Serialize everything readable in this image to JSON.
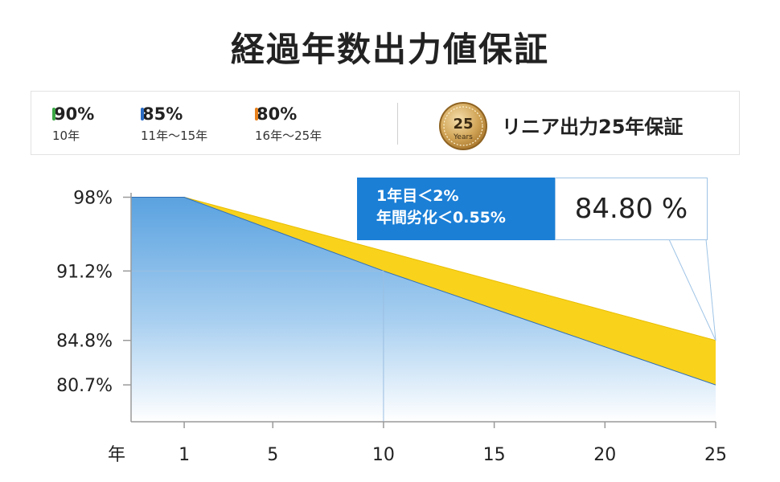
{
  "title": "経過年数出力値保証",
  "stats": [
    {
      "percent": "90%",
      "years": "10年",
      "color": "#3aa845"
    },
    {
      "percent": "85%",
      "years": "11年～15年",
      "color": "#2b6cc4"
    },
    {
      "percent": "80%",
      "years": "16年～25年",
      "color": "#e8821e"
    }
  ],
  "medal": {
    "number": "25",
    "label": "Years",
    "color": "#c59a45"
  },
  "guarantee_label": "リニア出力25年保証",
  "callout": {
    "line1": "1年目＜2%",
    "line2": "年間劣化＜0.55%",
    "value": "84.80 %"
  },
  "colors": {
    "accent_blue": "#1b7fd6",
    "yellow": "#f9d21c",
    "area_blue": "#5aa2e0"
  },
  "chart_data": {
    "type": "area",
    "x_unit_label": "年",
    "x_ticks": [
      "1",
      "5",
      "10",
      "15",
      "20",
      "25"
    ],
    "y_ticks": [
      "98%",
      "91.2%",
      "84.8%",
      "80.7%"
    ],
    "xlim": [
      -1.4,
      25
    ],
    "ylim": [
      77.3,
      103
    ],
    "series": [
      {
        "points": [
          [
            -1.4,
            98.0
          ],
          [
            1,
            98.0
          ],
          [
            25,
            84.8
          ]
        ]
      },
      {
        "points": [
          [
            -1.4,
            98.0
          ],
          [
            1,
            98.0
          ],
          [
            10,
            91.2
          ],
          [
            25,
            80.7
          ]
        ]
      }
    ],
    "markers": [
      {
        "x": 10,
        "y": 91.2
      }
    ]
  }
}
